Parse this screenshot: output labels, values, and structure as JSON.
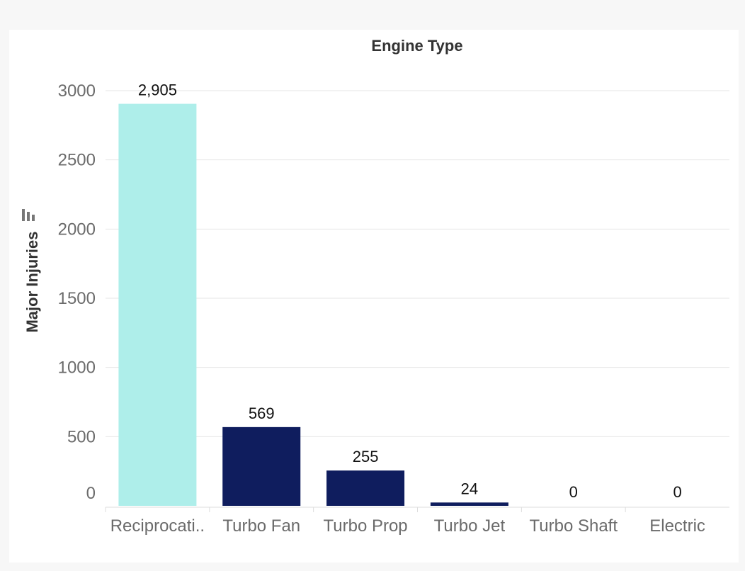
{
  "chart_data": {
    "type": "bar",
    "title": "Engine Type",
    "ylabel": "Major Injuries",
    "categories": [
      "Reciprocati..",
      "Turbo Fan",
      "Turbo Prop",
      "Turbo Jet",
      "Turbo Shaft",
      "Electric"
    ],
    "values": [
      2905,
      569,
      255,
      24,
      0,
      0
    ],
    "value_labels": [
      "2,905",
      "569",
      "255",
      "24",
      "0",
      "0"
    ],
    "yticks": [
      0,
      500,
      1000,
      1500,
      2000,
      2500,
      3000
    ],
    "ylim": [
      0,
      3200
    ],
    "grid": true,
    "bar_colors": [
      "#aeeeea",
      "#0f1d5e",
      "#0f1d5e",
      "#0f1d5e",
      "#0f1d5e",
      "#0f1d5e"
    ]
  }
}
